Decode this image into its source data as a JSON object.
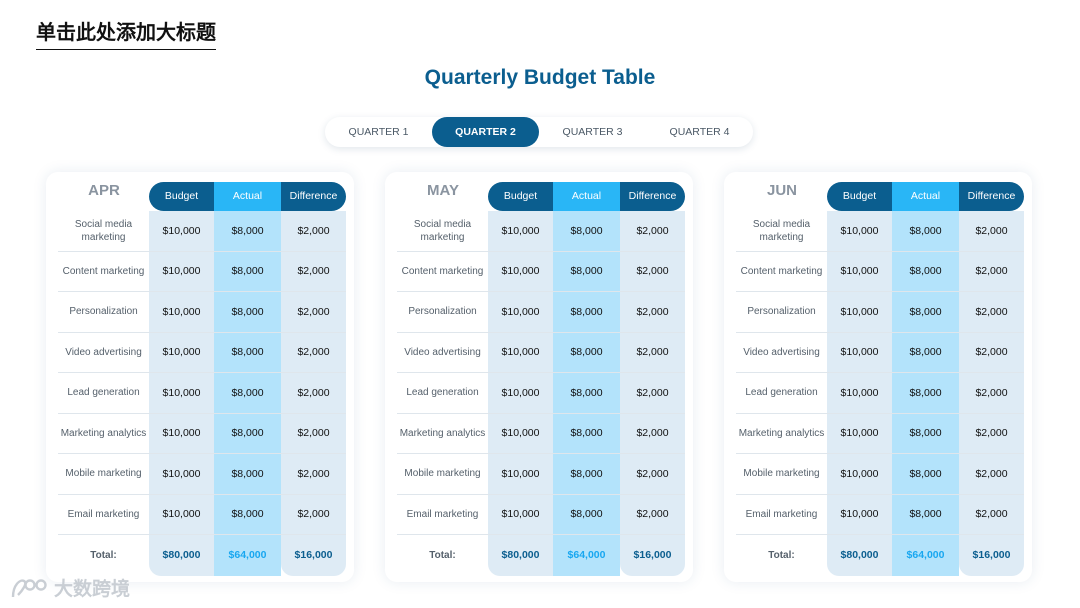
{
  "page_heading": "单击此处添加大标题",
  "table_title": "Quarterly Budget Table",
  "tabs": [
    {
      "label": "QUARTER 1"
    },
    {
      "label": "QUARTER 2"
    },
    {
      "label": "QUARTER 3"
    },
    {
      "label": "QUARTER 4"
    }
  ],
  "active_tab": "QUARTER 2",
  "columns": {
    "budget": "Budget",
    "actual": "Actual",
    "difference": "Difference"
  },
  "months": [
    {
      "name": "APR",
      "rows": [
        {
          "category": "Social media marketing",
          "budget": "$10,000",
          "actual": "$8,000",
          "difference": "$2,000"
        },
        {
          "category": "Content marketing",
          "budget": "$10,000",
          "actual": "$8,000",
          "difference": "$2,000"
        },
        {
          "category": "Personalization",
          "budget": "$10,000",
          "actual": "$8,000",
          "difference": "$2,000"
        },
        {
          "category": "Video advertising",
          "budget": "$10,000",
          "actual": "$8,000",
          "difference": "$2,000"
        },
        {
          "category": "Lead generation",
          "budget": "$10,000",
          "actual": "$8,000",
          "difference": "$2,000"
        },
        {
          "category": "Marketing analytics",
          "budget": "$10,000",
          "actual": "$8,000",
          "difference": "$2,000"
        },
        {
          "category": "Mobile marketing",
          "budget": "$10,000",
          "actual": "$8,000",
          "difference": "$2,000"
        },
        {
          "category": "Email marketing",
          "budget": "$10,000",
          "actual": "$8,000",
          "difference": "$2,000"
        }
      ],
      "total": {
        "label": "Total:",
        "budget": "$80,000",
        "actual": "$64,000",
        "difference": "$16,000"
      }
    },
    {
      "name": "MAY",
      "rows": [
        {
          "category": "Social media marketing",
          "budget": "$10,000",
          "actual": "$8,000",
          "difference": "$2,000"
        },
        {
          "category": "Content marketing",
          "budget": "$10,000",
          "actual": "$8,000",
          "difference": "$2,000"
        },
        {
          "category": "Personalization",
          "budget": "$10,000",
          "actual": "$8,000",
          "difference": "$2,000"
        },
        {
          "category": "Video advertising",
          "budget": "$10,000",
          "actual": "$8,000",
          "difference": "$2,000"
        },
        {
          "category": "Lead generation",
          "budget": "$10,000",
          "actual": "$8,000",
          "difference": "$2,000"
        },
        {
          "category": "Marketing analytics",
          "budget": "$10,000",
          "actual": "$8,000",
          "difference": "$2,000"
        },
        {
          "category": "Mobile marketing",
          "budget": "$10,000",
          "actual": "$8,000",
          "difference": "$2,000"
        },
        {
          "category": "Email marketing",
          "budget": "$10,000",
          "actual": "$8,000",
          "difference": "$2,000"
        }
      ],
      "total": {
        "label": "Total:",
        "budget": "$80,000",
        "actual": "$64,000",
        "difference": "$16,000"
      }
    },
    {
      "name": "JUN",
      "rows": [
        {
          "category": "Social media marketing",
          "budget": "$10,000",
          "actual": "$8,000",
          "difference": "$2,000"
        },
        {
          "category": "Content marketing",
          "budget": "$10,000",
          "actual": "$8,000",
          "difference": "$2,000"
        },
        {
          "category": "Personalization",
          "budget": "$10,000",
          "actual": "$8,000",
          "difference": "$2,000"
        },
        {
          "category": "Video advertising",
          "budget": "$10,000",
          "actual": "$8,000",
          "difference": "$2,000"
        },
        {
          "category": "Lead generation",
          "budget": "$10,000",
          "actual": "$8,000",
          "difference": "$2,000"
        },
        {
          "category": "Marketing analytics",
          "budget": "$10,000",
          "actual": "$8,000",
          "difference": "$2,000"
        },
        {
          "category": "Mobile marketing",
          "budget": "$10,000",
          "actual": "$8,000",
          "difference": "$2,000"
        },
        {
          "category": "Email marketing",
          "budget": "$10,000",
          "actual": "$8,000",
          "difference": "$2,000"
        }
      ],
      "total": {
        "label": "Total:",
        "budget": "$80,000",
        "actual": "$64,000",
        "difference": "$16,000"
      }
    }
  ],
  "watermark": "大数跨境",
  "colors": {
    "primary": "#0b5e8f",
    "accent": "#29b6f6",
    "cell_light": "#deebf5",
    "cell_actual": "#b3e3fb"
  }
}
